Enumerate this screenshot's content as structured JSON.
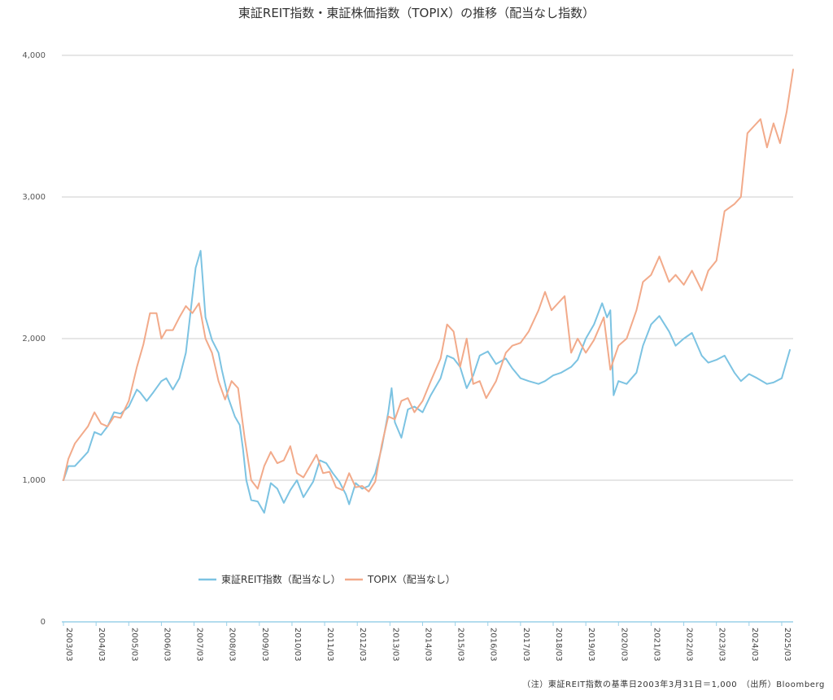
{
  "colors": {
    "reit": "#7cc3e2",
    "topix": "#f2aa8a",
    "grid": "#cccccc",
    "axis": "#9ad0e8"
  },
  "chart_data": {
    "type": "line",
    "title": "東証REIT指数・東証株価指数（TOPIX）の推移（配当なし指数）",
    "xlabel": "",
    "ylabel": "",
    "ylim": [
      0,
      4000
    ],
    "xlim": [
      2003.2,
      2025.6
    ],
    "yticks": [
      0,
      1000,
      2000,
      3000,
      4000
    ],
    "ytick_labels": [
      "0",
      "1,000",
      "2,000",
      "3,000",
      "4,000"
    ],
    "xtick_labels": [
      "2003/03",
      "2004/03",
      "2005/03",
      "2006/03",
      "2007/03",
      "2008/03",
      "2009/03",
      "2010/03",
      "2011/03",
      "2012/03",
      "2013/03",
      "2014/03",
      "2015/03",
      "2016/03",
      "2017/03",
      "2018/03",
      "2019/03",
      "2020/03",
      "2021/03",
      "2022/03",
      "2023/03",
      "2024/03",
      "2025/03"
    ],
    "grid": true,
    "legend": "bottom-center",
    "note": "（注）東証REIT指数の基準日2003年3月31日＝1,000　（出所）Bloomberg",
    "series": [
      {
        "name": "東証REIT指数（配当なし）",
        "color": "#7cc3e2",
        "x": [
          2003.25,
          2003.4,
          2003.6,
          2003.8,
          2004.0,
          2004.2,
          2004.4,
          2004.6,
          2004.8,
          2005.0,
          2005.25,
          2005.5,
          2005.6,
          2005.8,
          2006.0,
          2006.25,
          2006.4,
          2006.6,
          2006.8,
          2007.0,
          2007.2,
          2007.3,
          2007.45,
          2007.6,
          2007.8,
          2008.0,
          2008.1,
          2008.3,
          2008.5,
          2008.65,
          2008.75,
          2008.85,
          2009.0,
          2009.2,
          2009.4,
          2009.6,
          2009.8,
          2010.0,
          2010.2,
          2010.4,
          2010.6,
          2010.9,
          2011.1,
          2011.3,
          2011.5,
          2011.7,
          2011.9,
          2012.0,
          2012.2,
          2012.4,
          2012.6,
          2012.8,
          2013.0,
          2013.2,
          2013.3,
          2013.4,
          2013.6,
          2013.8,
          2014.0,
          2014.25,
          2014.5,
          2014.8,
          2015.0,
          2015.2,
          2015.4,
          2015.6,
          2015.8,
          2016.0,
          2016.25,
          2016.5,
          2016.8,
          2017.0,
          2017.25,
          2017.5,
          2017.8,
          2018.0,
          2018.25,
          2018.5,
          2018.8,
          2019.0,
          2019.25,
          2019.5,
          2019.75,
          2019.9,
          2020.0,
          2020.1,
          2020.25,
          2020.5,
          2020.8,
          2021.0,
          2021.25,
          2021.5,
          2021.8,
          2022.0,
          2022.25,
          2022.5,
          2022.8,
          2023.0,
          2023.25,
          2023.5,
          2023.8,
          2024.0,
          2024.25,
          2024.5,
          2024.8,
          2025.0,
          2025.25,
          2025.5
        ],
        "values": [
          1000,
          1100,
          1100,
          1150,
          1200,
          1340,
          1320,
          1380,
          1480,
          1470,
          1520,
          1640,
          1620,
          1560,
          1620,
          1700,
          1720,
          1640,
          1720,
          1900,
          2300,
          2500,
          2620,
          2150,
          1990,
          1900,
          1780,
          1580,
          1450,
          1390,
          1220,
          1000,
          860,
          850,
          770,
          980,
          940,
          840,
          930,
          1000,
          880,
          990,
          1140,
          1120,
          1050,
          990,
          900,
          830,
          980,
          940,
          960,
          1050,
          1230,
          1480,
          1650,
          1410,
          1300,
          1500,
          1520,
          1480,
          1600,
          1720,
          1880,
          1860,
          1800,
          1650,
          1740,
          1880,
          1910,
          1820,
          1860,
          1790,
          1720,
          1700,
          1680,
          1700,
          1740,
          1760,
          1800,
          1850,
          2000,
          2100,
          2250,
          2150,
          2200,
          1600,
          1700,
          1680,
          1760,
          1950,
          2100,
          2160,
          2050,
          1950,
          2000,
          2040,
          1880,
          1830,
          1850,
          1880,
          1760,
          1700,
          1750,
          1720,
          1680,
          1690,
          1720,
          1920
        ]
      },
      {
        "name": "TOPIX（配当なし）",
        "color": "#f2aa8a",
        "x": [
          2003.25,
          2003.4,
          2003.6,
          2003.8,
          2004.0,
          2004.2,
          2004.4,
          2004.6,
          2004.8,
          2005.0,
          2005.25,
          2005.5,
          2005.7,
          2005.9,
          2006.1,
          2006.25,
          2006.4,
          2006.6,
          2006.8,
          2007.0,
          2007.2,
          2007.4,
          2007.6,
          2007.8,
          2008.0,
          2008.2,
          2008.4,
          2008.6,
          2008.8,
          2009.0,
          2009.2,
          2009.4,
          2009.6,
          2009.8,
          2010.0,
          2010.2,
          2010.4,
          2010.6,
          2010.8,
          2011.0,
          2011.2,
          2011.4,
          2011.6,
          2011.8,
          2012.0,
          2012.2,
          2012.4,
          2012.6,
          2012.8,
          2013.0,
          2013.2,
          2013.4,
          2013.6,
          2013.8,
          2014.0,
          2014.25,
          2014.5,
          2014.8,
          2015.0,
          2015.2,
          2015.4,
          2015.6,
          2015.8,
          2016.0,
          2016.2,
          2016.5,
          2016.8,
          2017.0,
          2017.25,
          2017.5,
          2017.8,
          2018.0,
          2018.2,
          2018.4,
          2018.6,
          2018.8,
          2019.0,
          2019.25,
          2019.5,
          2019.8,
          2020.0,
          2020.1,
          2020.25,
          2020.5,
          2020.8,
          2021.0,
          2021.25,
          2021.5,
          2021.8,
          2022.0,
          2022.25,
          2022.5,
          2022.8,
          2023.0,
          2023.25,
          2023.5,
          2023.8,
          2024.0,
          2024.2,
          2024.4,
          2024.6,
          2024.8,
          2025.0,
          2025.2,
          2025.4,
          2025.6
        ],
        "values": [
          1000,
          1150,
          1260,
          1320,
          1380,
          1480,
          1400,
          1380,
          1450,
          1440,
          1560,
          1800,
          1960,
          2180,
          2180,
          2000,
          2060,
          2060,
          2150,
          2230,
          2180,
          2250,
          2000,
          1900,
          1700,
          1570,
          1700,
          1650,
          1300,
          1000,
          940,
          1100,
          1200,
          1120,
          1140,
          1240,
          1050,
          1020,
          1100,
          1180,
          1050,
          1060,
          950,
          930,
          1050,
          950,
          960,
          920,
          990,
          1250,
          1450,
          1430,
          1560,
          1580,
          1480,
          1560,
          1700,
          1860,
          2100,
          2050,
          1800,
          2000,
          1680,
          1700,
          1580,
          1700,
          1900,
          1950,
          1970,
          2050,
          2200,
          2330,
          2200,
          2250,
          2300,
          1900,
          2000,
          1900,
          1990,
          2150,
          1780,
          1850,
          1950,
          2000,
          2200,
          2400,
          2450,
          2580,
          2400,
          2450,
          2380,
          2480,
          2340,
          2480,
          2550,
          2900,
          2950,
          3000,
          3450,
          3500,
          3550,
          3350,
          3520,
          3380,
          3600,
          3900
        ]
      }
    ]
  }
}
